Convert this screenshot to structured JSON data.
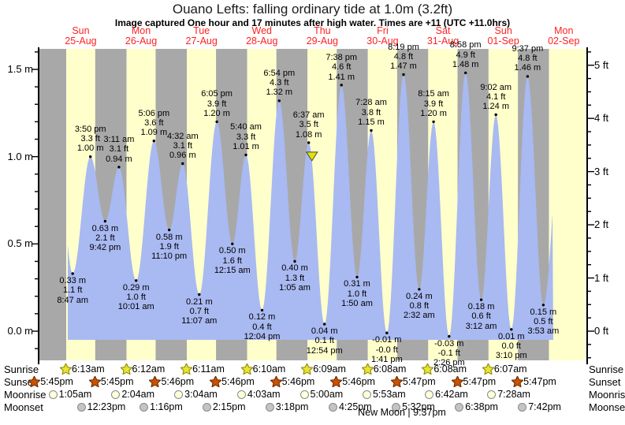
{
  "title": "Ouano Lefts: falling  ordinary tide at 1.0m (3.2ft)",
  "subtitle": "Image captured One hour and 17 minutes after high water. Times are +11 (UTC +11.0hrs)",
  "days": [
    {
      "dow": "Sun",
      "date": "25-Aug"
    },
    {
      "dow": "Mon",
      "date": "26-Aug"
    },
    {
      "dow": "Tue",
      "date": "27-Aug"
    },
    {
      "dow": "Wed",
      "date": "28-Aug"
    },
    {
      "dow": "Thu",
      "date": "29-Aug"
    },
    {
      "dow": "Fri",
      "date": "30-Aug"
    },
    {
      "dow": "Sat",
      "date": "31-Aug"
    },
    {
      "dow": "Sun",
      "date": "01-Sep"
    },
    {
      "dow": "Mon",
      "date": "02-Sep"
    }
  ],
  "axis": {
    "left_ticks": [
      {
        "label": "1.5 m",
        "value": 1.5
      },
      {
        "label": "1.0 m",
        "value": 1.0
      },
      {
        "label": "0.5 m",
        "value": 0.5
      },
      {
        "label": "0.0 m",
        "value": 0.0
      }
    ],
    "right_ticks": [
      {
        "label": "5 ft",
        "value": 5
      },
      {
        "label": "4 ft",
        "value": 4
      },
      {
        "label": "3 ft",
        "value": 3
      },
      {
        "label": "2 ft",
        "value": 2
      },
      {
        "label": "1 ft",
        "value": 1
      },
      {
        "label": "0 ft",
        "value": 0
      }
    ]
  },
  "chart_data": {
    "type": "area",
    "title": "Ouano Lefts: falling  ordinary tide at 1.0m (3.2ft)",
    "categories": [
      "Sun 25-Aug",
      "Mon 26-Aug",
      "Tue 27-Aug",
      "Wed 28-Aug",
      "Thu 29-Aug",
      "Fri 30-Aug",
      "Sat 31-Aug",
      "Sun 01-Sep",
      "Mon 02-Sep"
    ],
    "y_left_ticks_m": [
      0.0,
      0.5,
      1.0,
      1.5
    ],
    "y_right_ticks_ft": [
      0,
      1,
      2,
      3,
      4,
      5
    ],
    "ylim_m": [
      -0.16,
      1.62
    ],
    "tides": [
      {
        "type": "low",
        "day": 0,
        "time": "8:47 am",
        "ft": "1.1 ft",
        "m": "0.33 m",
        "height_m": 0.33
      },
      {
        "type": "high",
        "day": 0,
        "time": "3:50 pm",
        "ft": "3.3 ft",
        "m": "1.00 m",
        "height_m": 1.0
      },
      {
        "type": "low",
        "day": 0,
        "time": "9:42 pm",
        "ft": "2.1 ft",
        "m": "0.63 m",
        "height_m": 0.63
      },
      {
        "type": "high",
        "day": 1,
        "time": "3:11 am",
        "ft": "3.1 ft",
        "m": "0.94 m",
        "height_m": 0.94
      },
      {
        "type": "low",
        "day": 1,
        "time": "10:01 am",
        "ft": "1.0 ft",
        "m": "0.29 m",
        "height_m": 0.29
      },
      {
        "type": "high",
        "day": 1,
        "time": "5:06 pm",
        "ft": "3.6 ft",
        "m": "1.09 m",
        "height_m": 1.09
      },
      {
        "type": "low",
        "day": 1,
        "time": "11:10 pm",
        "ft": "1.9 ft",
        "m": "0.58 m",
        "height_m": 0.58
      },
      {
        "type": "high",
        "day": 2,
        "time": "4:32 am",
        "ft": "3.1 ft",
        "m": "0.96 m",
        "height_m": 0.96
      },
      {
        "type": "low",
        "day": 2,
        "time": "11:07 am",
        "ft": "0.7 ft",
        "m": "0.21 m",
        "height_m": 0.21
      },
      {
        "type": "high",
        "day": 2,
        "time": "6:05 pm",
        "ft": "3.9 ft",
        "m": "1.20 m",
        "height_m": 1.2
      },
      {
        "type": "low",
        "day": 3,
        "time": "12:15 am",
        "ft": "1.6 ft",
        "m": "0.50 m",
        "height_m": 0.5
      },
      {
        "type": "high",
        "day": 3,
        "time": "5:40 am",
        "ft": "3.3 ft",
        "m": "1.01 m",
        "height_m": 1.01
      },
      {
        "type": "low",
        "day": 3,
        "time": "12:04 pm",
        "ft": "0.4 ft",
        "m": "0.12 m",
        "height_m": 0.12
      },
      {
        "type": "high",
        "day": 3,
        "time": "6:54 pm",
        "ft": "4.3 ft",
        "m": "1.32 m",
        "height_m": 1.32
      },
      {
        "type": "low",
        "day": 4,
        "time": "1:05 am",
        "ft": "1.3 ft",
        "m": "0.40 m",
        "height_m": 0.4
      },
      {
        "type": "high",
        "day": 4,
        "time": "6:37 am",
        "ft": "3.5 ft",
        "m": "1.08 m",
        "height_m": 1.08
      },
      {
        "type": "low",
        "day": 4,
        "time": "12:54 pm",
        "ft": "0.1 ft",
        "m": "0.04 m",
        "height_m": 0.04
      },
      {
        "type": "high",
        "day": 4,
        "time": "7:38 pm",
        "ft": "4.6 ft",
        "m": "1.41 m",
        "height_m": 1.41
      },
      {
        "type": "low",
        "day": 5,
        "time": "1:50 am",
        "ft": "1.0 ft",
        "m": "0.31 m",
        "height_m": 0.31
      },
      {
        "type": "high",
        "day": 5,
        "time": "7:28 am",
        "ft": "3.8 ft",
        "m": "1.15 m",
        "height_m": 1.15
      },
      {
        "type": "low",
        "day": 5,
        "time": "1:41 pm",
        "ft": "-0.0 ft",
        "m": "-0.01 m",
        "height_m": -0.01
      },
      {
        "type": "high",
        "day": 5,
        "time": "8:19 pm",
        "ft": "4.8 ft",
        "m": "1.47 m",
        "height_m": 1.47
      },
      {
        "type": "low",
        "day": 6,
        "time": "2:32 am",
        "ft": "0.8 ft",
        "m": "0.24 m",
        "height_m": 0.24
      },
      {
        "type": "high",
        "day": 6,
        "time": "8:15 am",
        "ft": "3.9 ft",
        "m": "1.20 m",
        "height_m": 1.2
      },
      {
        "type": "low",
        "day": 6,
        "time": "2:26 pm",
        "ft": "-0.1 ft",
        "m": "-0.03 m",
        "height_m": -0.03
      },
      {
        "type": "high",
        "day": 6,
        "time": "8:58 pm",
        "ft": "4.9 ft",
        "m": "1.48 m",
        "height_m": 1.48
      },
      {
        "type": "low",
        "day": 7,
        "time": "3:12 am",
        "ft": "0.6 ft",
        "m": "0.18 m",
        "height_m": 0.18
      },
      {
        "type": "high",
        "day": 7,
        "time": "9:02 am",
        "ft": "4.1 ft",
        "m": "1.24 m",
        "height_m": 1.24
      },
      {
        "type": "low",
        "day": 7,
        "time": "3:10 pm",
        "ft": "0.0 ft",
        "m": "0.01 m",
        "height_m": 0.01
      },
      {
        "type": "high",
        "day": 7,
        "time": "9:37 pm",
        "ft": "4.8 ft",
        "m": "1.46 m",
        "height_m": 1.46
      },
      {
        "type": "low",
        "day": 8,
        "time": "3:53 am",
        "ft": "0.5 ft",
        "m": "0.15 m",
        "height_m": 0.15
      }
    ],
    "current_time_marker": {
      "day": 4,
      "time": "7:54 am"
    }
  },
  "astro": {
    "rows": [
      {
        "label": "Sunrise",
        "icon": "sunrise-star",
        "entries": [
          {
            "day": 0,
            "time": "6:13am"
          },
          {
            "day": 1,
            "time": "6:12am"
          },
          {
            "day": 2,
            "time": "6:11am"
          },
          {
            "day": 3,
            "time": "6:10am"
          },
          {
            "day": 4,
            "time": "6:09am"
          },
          {
            "day": 5,
            "time": "6:08am"
          },
          {
            "day": 6,
            "time": "6:08am"
          },
          {
            "day": 7,
            "time": "6:07am"
          }
        ]
      },
      {
        "label": "Sunset",
        "icon": "sunset-star",
        "entries": [
          {
            "day": -1,
            "time": "5:45pm"
          },
          {
            "day": 0,
            "time": "5:45pm"
          },
          {
            "day": 1,
            "time": "5:46pm"
          },
          {
            "day": 2,
            "time": "5:46pm"
          },
          {
            "day": 3,
            "time": "5:46pm"
          },
          {
            "day": 4,
            "time": "5:46pm"
          },
          {
            "day": 5,
            "time": "5:47pm"
          },
          {
            "day": 6,
            "time": "5:47pm"
          },
          {
            "day": 7,
            "time": "5:47pm"
          }
        ]
      },
      {
        "label": "Moonrise",
        "icon": "moonrise-circle",
        "entries": [
          {
            "day": 0,
            "time": "1:05am"
          },
          {
            "day": 1,
            "time": "2:04am"
          },
          {
            "day": 2,
            "time": "3:04am"
          },
          {
            "day": 3,
            "time": "4:03am"
          },
          {
            "day": 4,
            "time": "5:00am"
          },
          {
            "day": 5,
            "time": "5:53am"
          },
          {
            "day": 6,
            "time": "6:42am"
          },
          {
            "day": 7,
            "time": "7:28am"
          }
        ]
      },
      {
        "label": "Moonset",
        "icon": "moonset-circle",
        "entries": [
          {
            "day": 0,
            "time": "12:23pm"
          },
          {
            "day": 1,
            "time": "1:16pm"
          },
          {
            "day": 2,
            "time": "2:15pm"
          },
          {
            "day": 3,
            "time": "3:18pm"
          },
          {
            "day": 4,
            "time": "4:25pm"
          },
          {
            "day": 5,
            "time": "5:32pm"
          },
          {
            "day": 6,
            "time": "6:38pm"
          },
          {
            "day": 7,
            "time": "7:42pm"
          }
        ]
      }
    ],
    "new_moon": "New Moon | 9:37pm"
  },
  "colors": {
    "night_band": "#a8a8a8",
    "day_band": "#ffffcc",
    "tide_fill": "#a9b9f1",
    "day_label_red": "#ff2222",
    "sunrise_star": "#e9e435",
    "sunrise_star_edge": "#8b8b00",
    "sunset_star": "#cc5200",
    "sunset_star_edge": "#6d2b00",
    "moonrise_fill": "#ffffd9",
    "moonset_fill": "#c4c4c4",
    "current_marker": "#e3e300"
  }
}
